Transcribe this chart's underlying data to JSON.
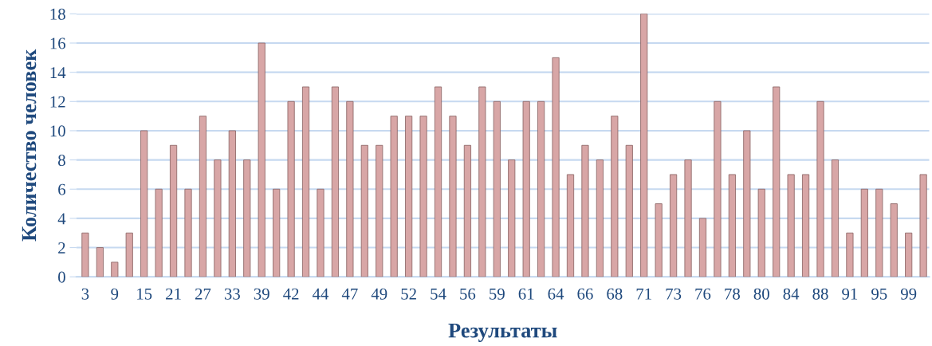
{
  "chart_data": {
    "type": "bar",
    "xlabel": "Результаты",
    "ylabel": "Количество человек",
    "categories": [
      "3",
      null,
      "9",
      null,
      "15",
      null,
      "21",
      null,
      "27",
      null,
      "33",
      null,
      "39",
      null,
      "42",
      null,
      "44",
      null,
      "47",
      null,
      "49",
      null,
      "52",
      null,
      "54",
      null,
      "56",
      null,
      "59",
      null,
      "61",
      null,
      "64",
      null,
      "66",
      null,
      "68",
      null,
      "71",
      null,
      "73",
      null,
      "76",
      null,
      "78",
      null,
      "80",
      null,
      "84",
      null,
      "88",
      null,
      "91",
      null,
      "95",
      null,
      "99",
      null
    ],
    "values": [
      3,
      2,
      1,
      3,
      10,
      6,
      9,
      6,
      11,
      8,
      10,
      8,
      16,
      6,
      12,
      13,
      6,
      13,
      12,
      9,
      9,
      11,
      11,
      11,
      13,
      11,
      9,
      13,
      12,
      8,
      12,
      12,
      15,
      7,
      9,
      8,
      11,
      9,
      18,
      5,
      7,
      8,
      4,
      12,
      7,
      10,
      6,
      13,
      7,
      7,
      12,
      8,
      3,
      6,
      6,
      5,
      3,
      7
    ],
    "color": "#d8a6a6",
    "ylim": [
      0,
      18
    ],
    "yticks": [
      0,
      2,
      4,
      6,
      8,
      10,
      12,
      14,
      16,
      18
    ],
    "grid": "y"
  }
}
